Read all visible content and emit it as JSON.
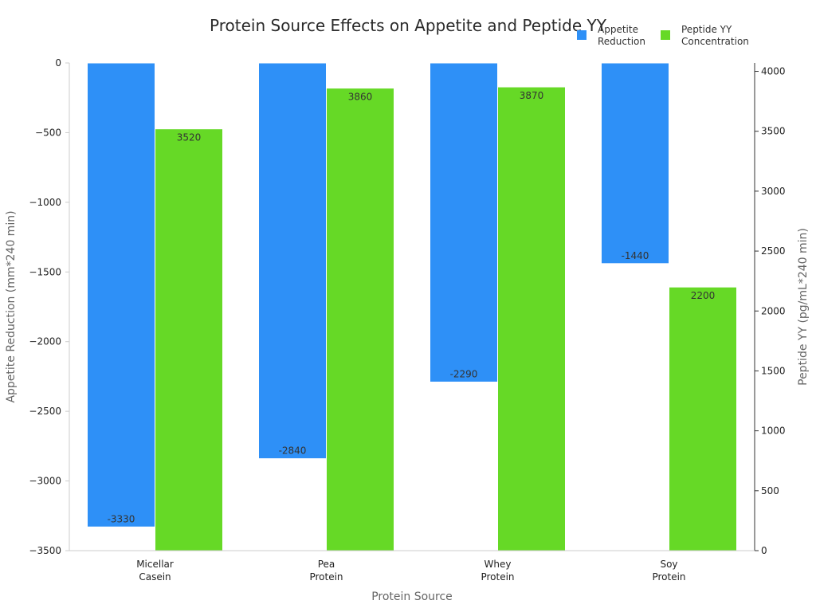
{
  "chart_data": {
    "type": "bar",
    "title": "Protein Source Effects on Appetite and Peptide YY",
    "xlabel": "Protein Source",
    "ylabel": "Appetite Reduction (mm*240 min)",
    "y2label": "Peptide YY (pg/mL*240 min)",
    "categories": [
      "Micellar\nCasein",
      "Pea\nProtein",
      "Whey\nProtein",
      "Soy\nProtein"
    ],
    "ylim": [
      -3500,
      0
    ],
    "y2lim": [
      0,
      4070
    ],
    "yticks": [
      "0",
      "−500",
      "−1000",
      "−1500",
      "−2000",
      "−2500",
      "−3000",
      "−3500"
    ],
    "y2ticks": [
      "0",
      "500",
      "1000",
      "1500",
      "2000",
      "2500",
      "3000",
      "3500",
      "4000"
    ],
    "legend_position": "top-right",
    "grid": false,
    "series": [
      {
        "name": "Appetite\nReduction",
        "axis": "left",
        "color": "#2e90f7",
        "values": [
          -3330,
          -2840,
          -2290,
          -1440
        ],
        "labels": [
          "-3330",
          "-2840",
          "-2290",
          "-1440"
        ]
      },
      {
        "name": "Peptide YY\nConcentration",
        "axis": "right",
        "color": "#66d926",
        "values": [
          3520,
          3860,
          3870,
          2200
        ],
        "labels": [
          "3520",
          "3860",
          "3870",
          "2200"
        ]
      }
    ]
  }
}
